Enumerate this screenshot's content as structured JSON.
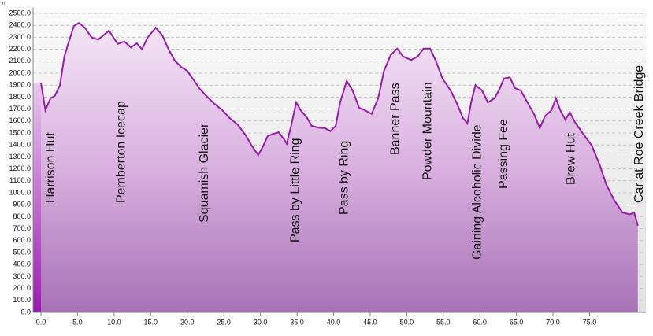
{
  "chart_data": {
    "type": "area",
    "y_unit": "m",
    "x": [
      0,
      0.6,
      1.3,
      1.9,
      2.6,
      3.2,
      3.9,
      4.5,
      5.2,
      6.0,
      6.9,
      7.8,
      8.6,
      9.3,
      9.9,
      10.5,
      11.4,
      12.3,
      13.1,
      13.8,
      14.6,
      15.7,
      16.6,
      17.4,
      18.3,
      19.2,
      20.0,
      20.9,
      21.7,
      22.6,
      23.7,
      24.8,
      25.8,
      26.9,
      28.0,
      28.8,
      29.7,
      30.4,
      31.0,
      31.9,
      32.5,
      33.2,
      33.6,
      34.2,
      34.9,
      35.5,
      36.4,
      37.0,
      37.9,
      38.8,
      39.6,
      40.3,
      40.9,
      41.8,
      42.6,
      43.5,
      44.3,
      45.2,
      46.1,
      46.9,
      47.8,
      48.7,
      49.5,
      50.6,
      51.5,
      52.3,
      53.2,
      54.0,
      54.9,
      56.0,
      56.8,
      57.7,
      58.3,
      58.8,
      59.4,
      60.3,
      61.1,
      62.0,
      62.6,
      63.3,
      64.1,
      64.8,
      65.6,
      66.5,
      67.4,
      68.2,
      68.9,
      69.8,
      70.4,
      71.0,
      71.7,
      72.3,
      73.0,
      74.1,
      75.3,
      76.4,
      77.3,
      78.4,
      79.5,
      80.5,
      81.1,
      81.6
    ],
    "series": [
      {
        "color": "#9a1ab0",
        "values": [
          1920,
          1690,
          1790,
          1810,
          1900,
          2140,
          2280,
          2395,
          2420,
          2380,
          2300,
          2280,
          2320,
          2355,
          2300,
          2245,
          2265,
          2215,
          2250,
          2200,
          2300,
          2380,
          2315,
          2205,
          2105,
          2050,
          2020,
          1940,
          1870,
          1810,
          1745,
          1690,
          1625,
          1570,
          1480,
          1395,
          1315,
          1395,
          1475,
          1495,
          1505,
          1450,
          1410,
          1560,
          1755,
          1690,
          1625,
          1560,
          1545,
          1540,
          1515,
          1560,
          1755,
          1935,
          1855,
          1710,
          1690,
          1660,
          1790,
          2020,
          2150,
          2205,
          2140,
          2110,
          2140,
          2205,
          2205,
          2100,
          1955,
          1855,
          1755,
          1625,
          1580,
          1755,
          1900,
          1855,
          1755,
          1790,
          1855,
          1955,
          1965,
          1875,
          1855,
          1755,
          1660,
          1540,
          1640,
          1690,
          1790,
          1690,
          1610,
          1675,
          1590,
          1495,
          1395,
          1230,
          1065,
          935,
          835,
          820,
          835,
          725
        ]
      }
    ],
    "xlim": [
      0,
      82.7
    ],
    "ylim": [
      0,
      2550
    ],
    "xticks": [
      {
        "value": 0,
        "label": "0.0"
      },
      {
        "value": 5,
        "label": "5.0"
      },
      {
        "value": 10,
        "label": "10.0"
      },
      {
        "value": 15,
        "label": "15.0"
      },
      {
        "value": 20,
        "label": "20.0"
      },
      {
        "value": 25,
        "label": "25.0"
      },
      {
        "value": 30,
        "label": "30.0"
      },
      {
        "value": 35,
        "label": "35.0"
      },
      {
        "value": 40,
        "label": "40.0"
      },
      {
        "value": 45,
        "label": "45.0"
      },
      {
        "value": 50,
        "label": "50.0"
      },
      {
        "value": 55,
        "label": "55.0"
      },
      {
        "value": 60,
        "label": "60.0"
      },
      {
        "value": 65,
        "label": "65.0"
      },
      {
        "value": 70,
        "label": "70.0"
      },
      {
        "value": 75,
        "label": "75.0"
      }
    ],
    "yticks": [
      {
        "value": 0,
        "label": "0.0"
      },
      {
        "value": 100,
        "label": "100.0"
      },
      {
        "value": 200,
        "label": "200.0"
      },
      {
        "value": 300,
        "label": "300.0"
      },
      {
        "value": 400,
        "label": "400.0"
      },
      {
        "value": 500,
        "label": "500.0"
      },
      {
        "value": 600,
        "label": "600.0"
      },
      {
        "value": 700,
        "label": "700.0"
      },
      {
        "value": 800,
        "label": "800.0"
      },
      {
        "value": 900,
        "label": "900.0"
      },
      {
        "value": 1000,
        "label": "1000.0"
      },
      {
        "value": 1100,
        "label": "1100.0"
      },
      {
        "value": 1200,
        "label": "1200.0"
      },
      {
        "value": 1300,
        "label": "1300.0"
      },
      {
        "value": 1400,
        "label": "1400.0"
      },
      {
        "value": 1500,
        "label": "1500.0"
      },
      {
        "value": 1600,
        "label": "1600.0"
      },
      {
        "value": 1700,
        "label": "1700.0"
      },
      {
        "value": 1800,
        "label": "1800.0"
      },
      {
        "value": 1900,
        "label": "1900.0"
      },
      {
        "value": 2000,
        "label": "2000.0"
      },
      {
        "value": 2100,
        "label": "2100.0"
      },
      {
        "value": 2200,
        "label": "2200.0"
      },
      {
        "value": 2300,
        "label": "2300.0"
      },
      {
        "value": 2400,
        "label": "2400.0"
      },
      {
        "value": 2500,
        "label": "2500.0"
      }
    ],
    "grid": true,
    "annotations": [
      {
        "text": "Harrison Hut",
        "x": 1.4
      },
      {
        "text": "Pemberton Icecap",
        "x": 11.0
      },
      {
        "text": "Squamish Glacier",
        "x": 22.4
      },
      {
        "text": "Pass by Little Ring",
        "x": 34.8
      },
      {
        "text": "Pass by Ring",
        "x": 41.5
      },
      {
        "text": "Banner Pass",
        "x": 48.5
      },
      {
        "text": "Powder Mountain",
        "x": 52.9
      },
      {
        "text": "Gaining Alcoholic Divide",
        "x": 59.7
      },
      {
        "text": "Passing Fee",
        "x": 63.3
      },
      {
        "text": "Brew Hut",
        "x": 72.5
      },
      {
        "text": "Car at Roe Creek Bridge",
        "x": 81.8
      }
    ]
  }
}
